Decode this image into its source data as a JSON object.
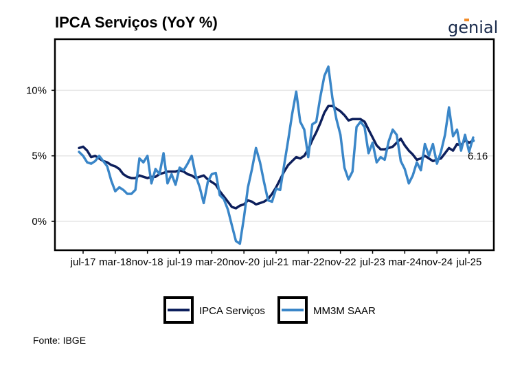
{
  "title": "IPCA Serviços (YoY %)",
  "brand": "genial",
  "source": "Fonte: IBGE",
  "colors": {
    "ipca": "#0d1f5c",
    "mm3m": "#3a86c8",
    "grid": "#e6e6e6",
    "axis": "#000000",
    "dot": "#3a86c8"
  },
  "chart_data": {
    "type": "line",
    "title": "IPCA Serviços (YoY %)",
    "xlabel": "",
    "ylabel": "",
    "ylim": [
      -2.2,
      13.9
    ],
    "y_ticks": [
      0,
      5,
      10
    ],
    "y_tick_labels": [
      "0%",
      "5%",
      "10%"
    ],
    "x_ticks": [
      "2017-07",
      "2018-03",
      "2018-11",
      "2019-07",
      "2020-03",
      "2020-11",
      "2021-07",
      "2022-03",
      "2022-11",
      "2023-07",
      "2024-03",
      "2024-11",
      "2025-07"
    ],
    "x_tick_labels": [
      "jul-17",
      "mar-18",
      "nov-18",
      "jul-19",
      "mar-20",
      "nov-20",
      "jul-21",
      "mar-22",
      "nov-22",
      "jul-23",
      "mar-24",
      "nov-24",
      "jul-25"
    ],
    "grid": true,
    "legend_position": "bottom",
    "annotation": {
      "text": "6.16",
      "x": "2025-07",
      "y": 6.16
    },
    "series": [
      {
        "name": "IPCA Serviços",
        "color": "#0d1f5c",
        "points": [
          [
            "2017-06",
            5.6
          ],
          [
            "2017-07",
            5.7
          ],
          [
            "2017-08",
            5.4
          ],
          [
            "2017-09",
            4.9
          ],
          [
            "2017-10",
            5.0
          ],
          [
            "2017-11",
            4.8
          ],
          [
            "2017-12",
            4.6
          ],
          [
            "2018-01",
            4.5
          ],
          [
            "2018-02",
            4.3
          ],
          [
            "2018-03",
            4.2
          ],
          [
            "2018-04",
            4.0
          ],
          [
            "2018-05",
            3.6
          ],
          [
            "2018-06",
            3.4
          ],
          [
            "2018-07",
            3.3
          ],
          [
            "2018-08",
            3.3
          ],
          [
            "2018-09",
            3.5
          ],
          [
            "2018-10",
            3.4
          ],
          [
            "2018-11",
            3.3
          ],
          [
            "2018-12",
            3.4
          ],
          [
            "2019-01",
            3.4
          ],
          [
            "2019-02",
            3.6
          ],
          [
            "2019-03",
            3.7
          ],
          [
            "2019-04",
            3.8
          ],
          [
            "2019-05",
            3.8
          ],
          [
            "2019-06",
            3.8
          ],
          [
            "2019-07",
            3.9
          ],
          [
            "2019-08",
            3.8
          ],
          [
            "2019-09",
            3.6
          ],
          [
            "2019-10",
            3.5
          ],
          [
            "2019-11",
            3.3
          ],
          [
            "2019-12",
            3.4
          ],
          [
            "2020-01",
            3.5
          ],
          [
            "2020-02",
            3.2
          ],
          [
            "2020-03",
            3.0
          ],
          [
            "2020-04",
            2.8
          ],
          [
            "2020-05",
            2.3
          ],
          [
            "2020-06",
            1.9
          ],
          [
            "2020-07",
            1.5
          ],
          [
            "2020-08",
            1.1
          ],
          [
            "2020-09",
            1.0
          ],
          [
            "2020-10",
            1.2
          ],
          [
            "2020-11",
            1.3
          ],
          [
            "2020-12",
            1.6
          ],
          [
            "2021-01",
            1.5
          ],
          [
            "2021-02",
            1.3
          ],
          [
            "2021-03",
            1.4
          ],
          [
            "2021-04",
            1.5
          ],
          [
            "2021-05",
            1.7
          ],
          [
            "2021-06",
            2.1
          ],
          [
            "2021-07",
            2.6
          ],
          [
            "2021-08",
            3.2
          ],
          [
            "2021-09",
            3.8
          ],
          [
            "2021-10",
            4.3
          ],
          [
            "2021-11",
            4.6
          ],
          [
            "2021-12",
            4.9
          ],
          [
            "2022-01",
            4.8
          ],
          [
            "2022-02",
            5.0
          ],
          [
            "2022-03",
            5.5
          ],
          [
            "2022-04",
            6.2
          ],
          [
            "2022-05",
            6.8
          ],
          [
            "2022-06",
            7.5
          ],
          [
            "2022-07",
            8.3
          ],
          [
            "2022-08",
            8.8
          ],
          [
            "2022-09",
            8.8
          ],
          [
            "2022-10",
            8.6
          ],
          [
            "2022-11",
            8.4
          ],
          [
            "2022-12",
            8.1
          ],
          [
            "2023-01",
            7.7
          ],
          [
            "2023-02",
            7.8
          ],
          [
            "2023-03",
            7.8
          ],
          [
            "2023-04",
            7.8
          ],
          [
            "2023-05",
            7.6
          ],
          [
            "2023-06",
            7.0
          ],
          [
            "2023-07",
            6.4
          ],
          [
            "2023-08",
            5.8
          ],
          [
            "2023-09",
            5.5
          ],
          [
            "2023-10",
            5.5
          ],
          [
            "2023-11",
            5.6
          ],
          [
            "2023-12",
            5.7
          ],
          [
            "2024-01",
            6.0
          ],
          [
            "2024-02",
            6.3
          ],
          [
            "2024-03",
            5.8
          ],
          [
            "2024-04",
            5.4
          ],
          [
            "2024-05",
            5.1
          ],
          [
            "2024-06",
            4.7
          ],
          [
            "2024-07",
            4.8
          ],
          [
            "2024-08",
            5.0
          ],
          [
            "2024-09",
            4.8
          ],
          [
            "2024-10",
            4.6
          ],
          [
            "2024-11",
            4.7
          ],
          [
            "2024-12",
            4.8
          ],
          [
            "2025-01",
            5.2
          ],
          [
            "2025-02",
            5.6
          ],
          [
            "2025-03",
            5.4
          ],
          [
            "2025-04",
            5.9
          ],
          [
            "2025-05",
            5.8
          ],
          [
            "2025-06",
            6.2
          ],
          [
            "2025-07",
            6.0
          ],
          [
            "2025-08",
            6.16
          ]
        ]
      },
      {
        "name": "MM3M SAAR",
        "color": "#3a86c8",
        "points": [
          [
            "2017-06",
            5.3
          ],
          [
            "2017-07",
            5.0
          ],
          [
            "2017-08",
            4.5
          ],
          [
            "2017-09",
            4.4
          ],
          [
            "2017-10",
            4.6
          ],
          [
            "2017-11",
            5.0
          ],
          [
            "2017-12",
            4.6
          ],
          [
            "2018-01",
            4.2
          ],
          [
            "2018-02",
            3.1
          ],
          [
            "2018-03",
            2.3
          ],
          [
            "2018-04",
            2.6
          ],
          [
            "2018-05",
            2.4
          ],
          [
            "2018-06",
            2.1
          ],
          [
            "2018-07",
            2.1
          ],
          [
            "2018-08",
            2.4
          ],
          [
            "2018-09",
            4.8
          ],
          [
            "2018-10",
            4.5
          ],
          [
            "2018-11",
            5.0
          ],
          [
            "2018-12",
            2.9
          ],
          [
            "2019-01",
            4.0
          ],
          [
            "2019-02",
            3.6
          ],
          [
            "2019-03",
            5.2
          ],
          [
            "2019-04",
            2.9
          ],
          [
            "2019-05",
            3.6
          ],
          [
            "2019-06",
            2.8
          ],
          [
            "2019-07",
            4.1
          ],
          [
            "2019-08",
            3.9
          ],
          [
            "2019-09",
            4.4
          ],
          [
            "2019-10",
            5.0
          ],
          [
            "2019-11",
            3.5
          ],
          [
            "2019-12",
            2.6
          ],
          [
            "2020-01",
            1.4
          ],
          [
            "2020-02",
            3.0
          ],
          [
            "2020-03",
            3.6
          ],
          [
            "2020-04",
            3.7
          ],
          [
            "2020-05",
            2.0
          ],
          [
            "2020-06",
            1.7
          ],
          [
            "2020-07",
            0.9
          ],
          [
            "2020-08",
            -0.3
          ],
          [
            "2020-09",
            -1.5
          ],
          [
            "2020-10",
            -1.7
          ],
          [
            "2020-11",
            0.3
          ],
          [
            "2020-12",
            2.6
          ],
          [
            "2021-01",
            4.0
          ],
          [
            "2021-02",
            5.6
          ],
          [
            "2021-03",
            4.5
          ],
          [
            "2021-04",
            3.0
          ],
          [
            "2021-05",
            1.6
          ],
          [
            "2021-06",
            1.5
          ],
          [
            "2021-07",
            2.5
          ],
          [
            "2021-08",
            2.4
          ],
          [
            "2021-09",
            4.3
          ],
          [
            "2021-10",
            6.2
          ],
          [
            "2021-11",
            8.2
          ],
          [
            "2021-12",
            9.9
          ],
          [
            "2022-01",
            7.6
          ],
          [
            "2022-02",
            7.0
          ],
          [
            "2022-03",
            4.9
          ],
          [
            "2022-04",
            7.4
          ],
          [
            "2022-05",
            7.6
          ],
          [
            "2022-06",
            9.5
          ],
          [
            "2022-07",
            11.1
          ],
          [
            "2022-08",
            11.8
          ],
          [
            "2022-09",
            9.4
          ],
          [
            "2022-10",
            7.8
          ],
          [
            "2022-11",
            6.6
          ],
          [
            "2022-12",
            4.1
          ],
          [
            "2023-01",
            3.2
          ],
          [
            "2023-02",
            3.8
          ],
          [
            "2023-03",
            7.2
          ],
          [
            "2023-04",
            7.6
          ],
          [
            "2023-05",
            7.2
          ],
          [
            "2023-06",
            5.2
          ],
          [
            "2023-07",
            6.0
          ],
          [
            "2023-08",
            4.5
          ],
          [
            "2023-09",
            4.9
          ],
          [
            "2023-10",
            4.7
          ],
          [
            "2023-11",
            6.1
          ],
          [
            "2023-12",
            7.0
          ],
          [
            "2024-01",
            6.6
          ],
          [
            "2024-02",
            4.6
          ],
          [
            "2024-03",
            4.0
          ],
          [
            "2024-04",
            2.9
          ],
          [
            "2024-05",
            3.5
          ],
          [
            "2024-06",
            4.5
          ],
          [
            "2024-07",
            3.9
          ],
          [
            "2024-08",
            5.9
          ],
          [
            "2024-09",
            5.0
          ],
          [
            "2024-10",
            5.9
          ],
          [
            "2024-11",
            4.4
          ],
          [
            "2024-12",
            5.3
          ],
          [
            "2025-01",
            6.6
          ],
          [
            "2025-02",
            8.7
          ],
          [
            "2025-03",
            6.5
          ],
          [
            "2025-04",
            7.0
          ],
          [
            "2025-05",
            5.4
          ],
          [
            "2025-06",
            6.6
          ],
          [
            "2025-07",
            5.3
          ],
          [
            "2025-08",
            6.4
          ]
        ]
      }
    ]
  }
}
